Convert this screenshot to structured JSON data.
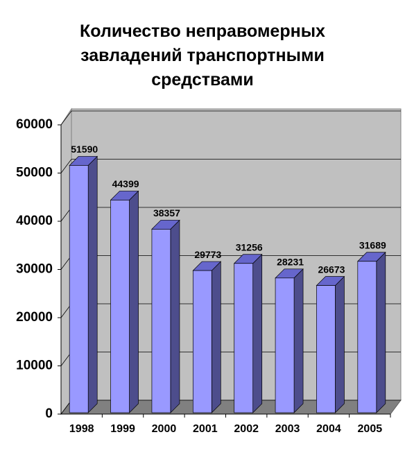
{
  "chart_data": {
    "type": "bar3d",
    "title": "Количество неправомерных завладений транспортными средствами",
    "categories": [
      "1998",
      "1999",
      "2000",
      "2001",
      "2002",
      "2003",
      "2004",
      "2005"
    ],
    "values": [
      51590,
      44399,
      38357,
      29773,
      31256,
      28231,
      26673,
      31689
    ],
    "color": "#9999ff",
    "ylim": [
      0,
      60000
    ],
    "yticks": [
      0,
      10000,
      20000,
      30000,
      40000,
      50000,
      60000
    ],
    "grid": true
  }
}
